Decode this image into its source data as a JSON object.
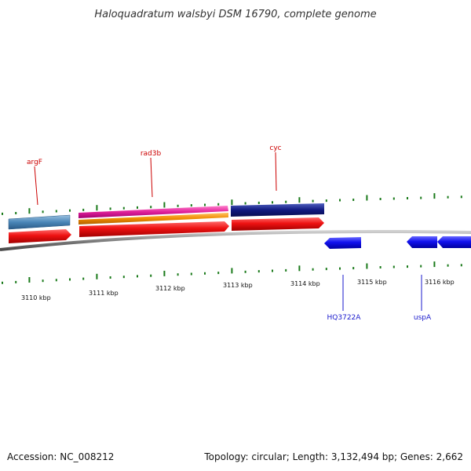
{
  "header": {
    "title": "Haloquadratum walsbyi DSM 16790, complete genome"
  },
  "footer": {
    "accession": "Accession: NC_008212",
    "summary": "Topology: circular; Length: 3,132,494 bp; Genes: 2,662"
  },
  "scale": {
    "labels": [
      "3110 kbp",
      "3111 kbp",
      "3112 kbp",
      "3113 kbp",
      "3114 kbp",
      "3115 kbp",
      "3116 kbp"
    ]
  },
  "genes": {
    "top_labels": [
      "argF",
      "rad3b",
      "cyc"
    ],
    "bottom_labels": [
      "HQ3722A",
      "uspA"
    ]
  },
  "colors": {
    "backbone": "#808080",
    "tick": "#1a7a1a",
    "forward_gene": "#ee1111",
    "reverse_gene": "#1111ee",
    "argF": "#4a86b8",
    "rad3b_pink": "#e0209a",
    "rad3b_orange": "#f08c00",
    "cyc": "#101a80"
  }
}
